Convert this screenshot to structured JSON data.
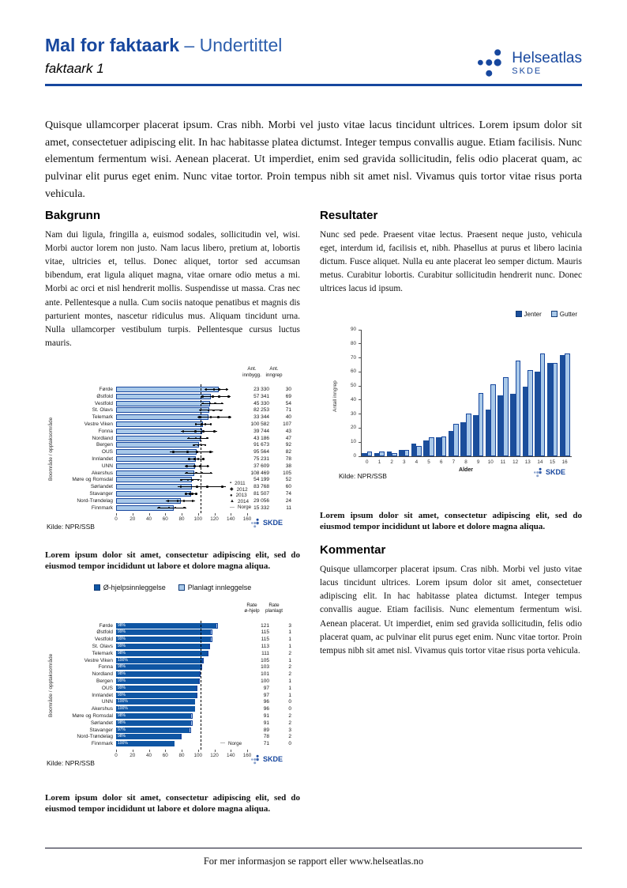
{
  "header": {
    "title": "Mal for faktaark",
    "subtitle": "– Undertittel",
    "doc_label": "faktaark 1",
    "logo": {
      "name": "Helseatlas",
      "org": "SKDE"
    }
  },
  "colors": {
    "accent": "#17479E",
    "bar_light": "#A9C9E9",
    "bar_dark": "#1B4E9B",
    "bar_dark_alt": "#0F56A4",
    "reference_line": "#000000"
  },
  "intro": "Quisque ullamcorper placerat ipsum. Cras nibh. Morbi vel justo vitae lacus tincidunt ultrices. Lorem ipsum dolor sit amet, consectetuer adipiscing elit. In hac habitasse platea dictumst. Integer tempus convallis augue. Etiam facilisis. Nunc elementum fermentum wisi. Aenean placerat. Ut imperdiet, enim sed gravida sollicitudin, felis odio placerat quam, ac pulvinar elit purus eget enim. Nunc vitae tortor. Proin tempus nibh sit amet nisl. Vivamus quis tortor vitae risus porta vehicula.",
  "sections": {
    "bakgrunn": {
      "title": "Bakgrunn",
      "body": "Nam dui ligula, fringilla a, euismod sodales, sollicitudin vel, wisi. Morbi auctor lorem non justo. Nam lacus libero, pretium at, lobortis vitae, ultricies et, tellus. Donec aliquet, tortor sed accumsan bibendum, erat ligula aliquet magna, vitae ornare odio metus a mi. Morbi ac orci et nisl hendrerit mollis. Suspendisse ut massa. Cras nec ante. Pellentesque a nulla. Cum sociis natoque penatibus et magnis dis parturient montes, nascetur ridiculus mus. Aliquam tincidunt urna. Nulla ullamcorper vestibulum turpis. Pellentesque cursus luctus mauris."
    },
    "resultater": {
      "title": "Resultater",
      "body": "Nunc sed pede. Praesent vitae lectus. Praesent neque justo, vehicula eget, interdum id, facilisis et, nibh. Phasellus at purus et libero lacinia dictum. Fusce aliquet. Nulla eu ante placerat leo semper dictum. Mauris metus. Curabitur lobortis. Curabitur sollicitudin hendrerit nunc. Donec ultrices lacus id ipsum."
    },
    "kommentar": {
      "title": "Kommentar",
      "body": "Quisque ullamcorper placerat ipsum. Cras nibh. Morbi vel justo vitae lacus tincidunt ultrices. Lorem ipsum dolor sit amet, consectetuer adipiscing elit. In hac habitasse platea dictumst. Integer tempus convallis augue. Etiam facilisis. Nunc elementum fermentum wisi. Aenean placerat. Ut imperdiet, enim sed gravida sollicitudin, felis odio placerat quam, ac pulvinar elit purus eget enim. Nunc vitae tortor. Proin tempus nibh sit amet nisl. Vivamus quis tortor vitae risus porta vehicula."
    }
  },
  "caption": "Lorem ipsum dolor sit amet, consectetur adipiscing elit, sed do eiusmod tempor incididunt ut labore et dolore magna aliqua.",
  "footer": {
    "text": "For mer informasjon se rapport eller www.helseatlas.no"
  },
  "chart_data": [
    {
      "id": "region-rates",
      "type": "bar",
      "orientation": "horizontal",
      "ylabel": "Boområde / opptaksområde",
      "xlim": [
        0,
        160
      ],
      "xticks": [
        0,
        20,
        40,
        60,
        80,
        100,
        120,
        140,
        160
      ],
      "reference": {
        "label": "Norge",
        "value": 103
      },
      "year_legend": [
        "2011",
        "2012",
        "2013",
        "2014"
      ],
      "columns": [
        "Ant.\ninnbygg.",
        "Ant.\ninngrep"
      ],
      "source": "Kilde: NPR/SSB",
      "rows": [
        {
          "label": "Førde",
          "value": 125,
          "lo": 108,
          "hi": 137,
          "innbygg": "23 330",
          "inngrep": "30"
        },
        {
          "label": "Østfold",
          "value": 116,
          "lo": 103,
          "hi": 140,
          "innbygg": "57 341",
          "inngrep": "69"
        },
        {
          "label": "Vestfold",
          "value": 115,
          "lo": 104,
          "hi": 131,
          "innbygg": "45 330",
          "inngrep": "54"
        },
        {
          "label": "St. Olavs",
          "value": 114,
          "lo": 101,
          "hi": 130,
          "innbygg": "82 253",
          "inngrep": "71"
        },
        {
          "label": "Telemark",
          "value": 113,
          "lo": 99,
          "hi": 141,
          "innbygg": "33 344",
          "inngrep": "40"
        },
        {
          "label": "Vestre Viken",
          "value": 106,
          "lo": 96,
          "hi": 117,
          "innbygg": "100 582",
          "inngrep": "107"
        },
        {
          "label": "Fonna",
          "value": 105,
          "lo": 79,
          "hi": 123,
          "innbygg": "39 744",
          "inngrep": "43"
        },
        {
          "label": "Nordland",
          "value": 103,
          "lo": 87,
          "hi": 113,
          "innbygg": "43 186",
          "inngrep": "47"
        },
        {
          "label": "Bergen",
          "value": 101,
          "lo": 94,
          "hi": 110,
          "innbygg": "91 673",
          "inngrep": "92"
        },
        {
          "label": "OUS",
          "value": 98,
          "lo": 66,
          "hi": 119,
          "innbygg": "95 564",
          "inngrep": "82"
        },
        {
          "label": "Innlandet",
          "value": 97,
          "lo": 88,
          "hi": 108,
          "innbygg": "75 231",
          "inngrep": "78"
        },
        {
          "label": "UNN",
          "value": 96,
          "lo": 84,
          "hi": 114,
          "innbygg": "37 609",
          "inngrep": "38"
        },
        {
          "label": "Akershus",
          "value": 95,
          "lo": 84,
          "hi": 118,
          "innbygg": "108 469",
          "inngrep": "105"
        },
        {
          "label": "Møre og Romsdal",
          "value": 93,
          "lo": 78,
          "hi": 102,
          "innbygg": "54 199",
          "inngrep": "52"
        },
        {
          "label": "Sørlandet",
          "value": 93,
          "lo": 75,
          "hi": 134,
          "innbygg": "83 768",
          "inngrep": "60"
        },
        {
          "label": "Stavanger",
          "value": 92,
          "lo": 84,
          "hi": 99,
          "innbygg": "81 507",
          "inngrep": "74"
        },
        {
          "label": "Nord-Trøndelag",
          "value": 79,
          "lo": 61,
          "hi": 96,
          "innbygg": "29 056",
          "inngrep": "24"
        },
        {
          "label": "Finnmark",
          "value": 70,
          "lo": 50,
          "hi": 86,
          "innbygg": "15 332",
          "inngrep": "11"
        }
      ]
    },
    {
      "id": "age-distribution",
      "type": "bar",
      "grouped": true,
      "categories": [
        "0",
        "1",
        "2",
        "3",
        "4",
        "5",
        "6",
        "7",
        "8",
        "9",
        "10",
        "11",
        "12",
        "13",
        "14",
        "15",
        "16"
      ],
      "series": [
        {
          "name": "Jenter",
          "color": "#1B4E9B",
          "values": [
            2,
            2,
            3,
            4,
            9,
            11,
            13,
            18,
            24,
            29,
            33,
            43,
            44,
            49,
            60,
            66,
            72
          ]
        },
        {
          "name": "Gutter",
          "color": "#A9C9E9",
          "values": [
            3,
            3,
            2,
            4,
            7,
            13,
            14,
            23,
            30,
            45,
            51,
            56,
            68,
            61,
            73,
            66,
            73
          ]
        }
      ],
      "xlabel": "Alder",
      "ylabel": "Antall inngrep",
      "ylim": [
        0,
        90
      ],
      "yticks": [
        0,
        10,
        20,
        30,
        40,
        50,
        60,
        70,
        80,
        90
      ],
      "legend_position": "top-right",
      "source": "Kilde: NPR/SSB"
    },
    {
      "id": "admission-rates",
      "type": "bar",
      "orientation": "horizontal",
      "stacked": true,
      "legend": [
        {
          "name": "Ø-hjelpsinnleggelse",
          "color": "#0F56A4"
        },
        {
          "name": "Planlagt innleggelse",
          "color": "#A9C9E9"
        }
      ],
      "ylabel": "Boområde / opptaksområde",
      "xlim": [
        0,
        160
      ],
      "xticks": [
        0,
        20,
        40,
        60,
        80,
        100,
        120,
        140,
        160
      ],
      "reference": {
        "label": "Norge",
        "value": 103
      },
      "columns": [
        "Rate\nø-hjelp",
        "Rate\nplanlagt"
      ],
      "source": "Kilde: NPR/SSB",
      "rows": [
        {
          "label": "Førde",
          "ohjelp": 121,
          "planlagt": 3,
          "pct": "98%"
        },
        {
          "label": "Østfold",
          "ohjelp": 115,
          "planlagt": 1,
          "pct": "99%"
        },
        {
          "label": "Vestfold",
          "ohjelp": 115,
          "planlagt": 1,
          "pct": "99%"
        },
        {
          "label": "St. Olavs",
          "ohjelp": 113,
          "planlagt": 1,
          "pct": "99%"
        },
        {
          "label": "Telemark",
          "ohjelp": 111,
          "planlagt": 2,
          "pct": "98%"
        },
        {
          "label": "Vestre Viken",
          "ohjelp": 105,
          "planlagt": 1,
          "pct": "100%"
        },
        {
          "label": "Fonna",
          "ohjelp": 103,
          "planlagt": 2,
          "pct": "98%"
        },
        {
          "label": "Nordland",
          "ohjelp": 101,
          "planlagt": 2,
          "pct": "98%"
        },
        {
          "label": "Bergen",
          "ohjelp": 100,
          "planlagt": 1,
          "pct": "99%"
        },
        {
          "label": "OUS",
          "ohjelp": 97,
          "planlagt": 1,
          "pct": "99%"
        },
        {
          "label": "Innlandet",
          "ohjelp": 97,
          "planlagt": 1,
          "pct": "99%"
        },
        {
          "label": "UNN",
          "ohjelp": 96,
          "planlagt": 0,
          "pct": "100%"
        },
        {
          "label": "Akershus",
          "ohjelp": 96,
          "planlagt": 0,
          "pct": "100%"
        },
        {
          "label": "Møre og Romsdal",
          "ohjelp": 91,
          "planlagt": 2,
          "pct": "98%"
        },
        {
          "label": "Sørlandet",
          "ohjelp": 91,
          "planlagt": 2,
          "pct": "98%"
        },
        {
          "label": "Stavanger",
          "ohjelp": 89,
          "planlagt": 3,
          "pct": "97%"
        },
        {
          "label": "Nord-Trøndelag",
          "ohjelp": 78,
          "planlagt": 2,
          "pct": "98%"
        },
        {
          "label": "Finnmark",
          "ohjelp": 71,
          "planlagt": 0,
          "pct": "100%"
        }
      ]
    }
  ]
}
